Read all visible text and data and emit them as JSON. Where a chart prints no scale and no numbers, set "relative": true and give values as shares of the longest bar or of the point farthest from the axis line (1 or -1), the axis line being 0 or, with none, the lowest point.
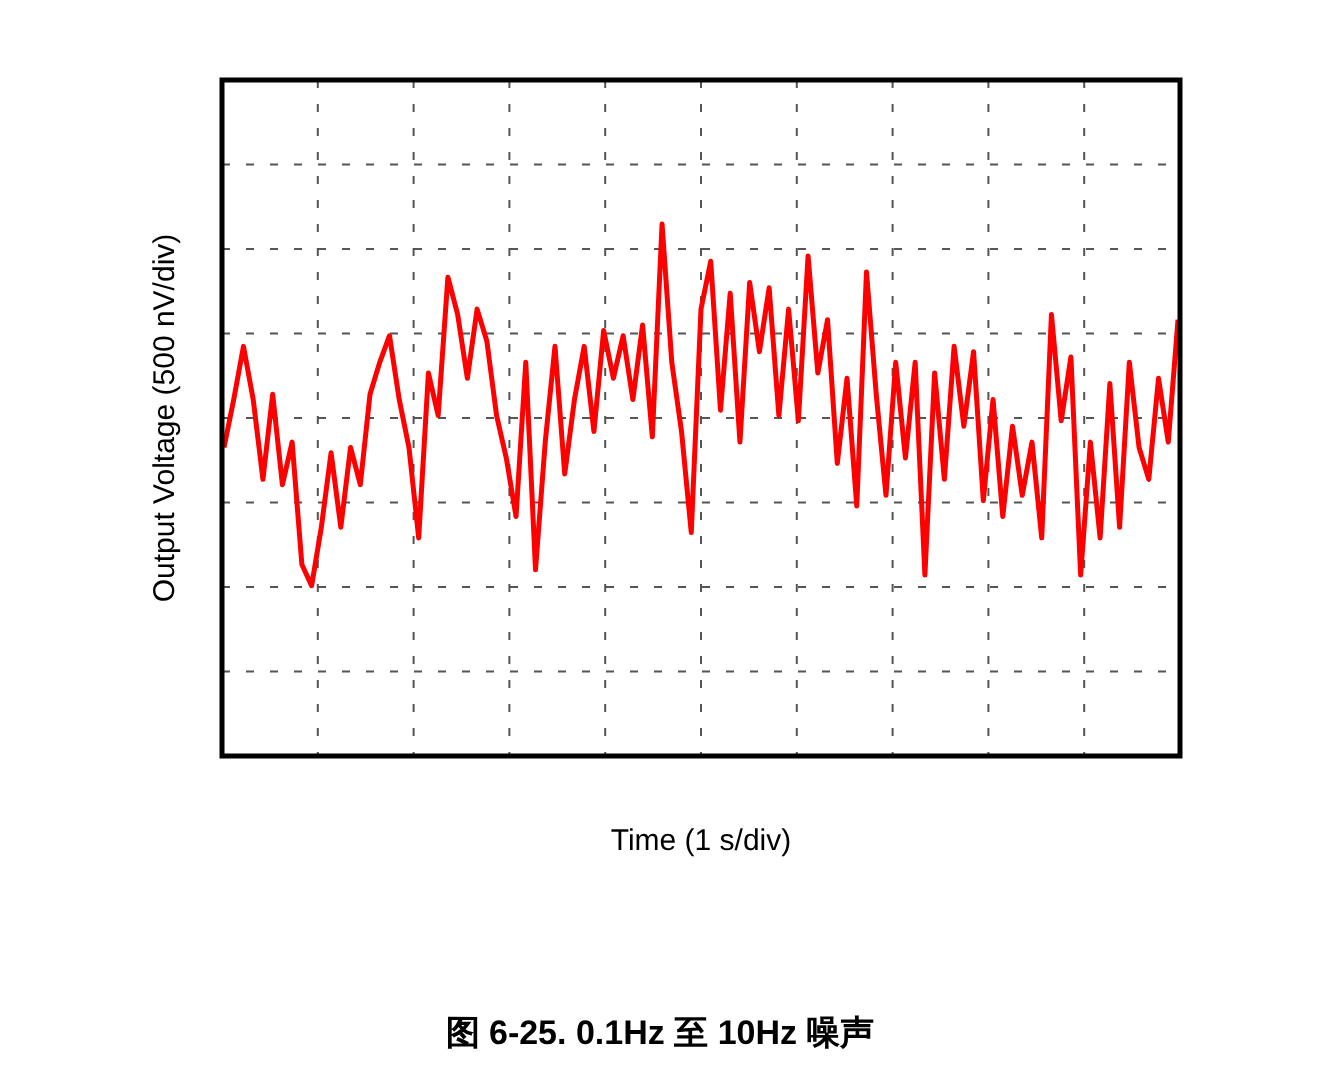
{
  "chart_data": {
    "type": "line",
    "title": "图 6-25. 0.1Hz 至 10Hz 噪声",
    "xlabel": "Time (1 s/div)",
    "ylabel": "Output Voltage (500 nV/div)",
    "relative": true,
    "grid": true,
    "categories": [
      null,
      null,
      null,
      null,
      null,
      null,
      null,
      null,
      null,
      null,
      null,
      null,
      null,
      null,
      null,
      null,
      null,
      null,
      null,
      null,
      null,
      null,
      null,
      null,
      null,
      null,
      null,
      null,
      null,
      null,
      null,
      null,
      null,
      null,
      null,
      null,
      null,
      null,
      null,
      null,
      null,
      null,
      null,
      null,
      null,
      null,
      null,
      null,
      null,
      null,
      null,
      null,
      null,
      null,
      null,
      null,
      null,
      null,
      null,
      null,
      null,
      null,
      null,
      null,
      null,
      null,
      null,
      null,
      null,
      null,
      null,
      null,
      null,
      null,
      null,
      null,
      null,
      null,
      null,
      null,
      null,
      null,
      null,
      null,
      null,
      null,
      null,
      null,
      null,
      null,
      null,
      null,
      null,
      null,
      null,
      null,
      null,
      null,
      null
    ],
    "series": [
      {
        "color": "#ff0000",
        "values": [
          0.58,
          0.67,
          0.77,
          0.67,
          0.52,
          0.68,
          0.51,
          0.59,
          0.36,
          0.32,
          0.43,
          0.57,
          0.43,
          0.58,
          0.51,
          0.68,
          0.74,
          0.79,
          0.67,
          0.58,
          0.41,
          0.72,
          0.64,
          0.9,
          0.83,
          0.71,
          0.84,
          0.78,
          0.64,
          0.56,
          0.45,
          0.74,
          0.35,
          0.59,
          0.77,
          0.53,
          0.67,
          0.77,
          0.61,
          0.8,
          0.71,
          0.79,
          0.67,
          0.81,
          0.6,
          1,
          0.74,
          0.61,
          0.42,
          0.84,
          0.93,
          0.65,
          0.87,
          0.59,
          0.89,
          0.76,
          0.88,
          0.64,
          0.84,
          0.63,
          0.94,
          0.72,
          0.82,
          0.55,
          0.71,
          0.47,
          0.91,
          0.68,
          0.49,
          0.74,
          0.56,
          0.74,
          0.34,
          0.72,
          0.52,
          0.77,
          0.62,
          0.76,
          0.48,
          0.67,
          0.45,
          0.62,
          0.49,
          0.59,
          0.41,
          0.83,
          0.63,
          0.75,
          0.34,
          0.59,
          0.41,
          0.7,
          0.43,
          0.74,
          0.58,
          0.52,
          0.71,
          0.59,
          0.82
        ]
      }
    ]
  }
}
